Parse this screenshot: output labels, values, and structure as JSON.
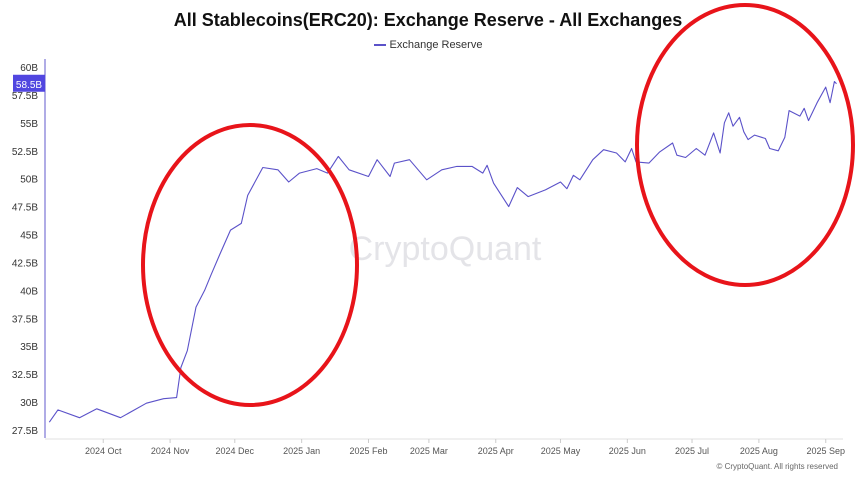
{
  "chart_data": {
    "type": "line",
    "title": "All Stablecoins(ERC20): Exchange Reserve - All Exchanges",
    "watermark": "CryptoQuant",
    "copyright": "© CryptoQuant. All rights reserved",
    "legend": {
      "placement": "top-center"
    },
    "grid": false,
    "xlim": [
      "2024-09-04",
      "2025-09-09"
    ],
    "ylim": [
      27.5,
      60
    ],
    "y_ticks": [
      "27.5B",
      "30B",
      "32.5B",
      "35B",
      "37.5B",
      "40B",
      "42.5B",
      "45B",
      "47.5B",
      "50B",
      "52.5B",
      "55B",
      "57.5B",
      "60B"
    ],
    "y_tick_values": [
      27.5,
      30,
      32.5,
      35,
      37.5,
      40,
      42.5,
      45,
      47.5,
      50,
      52.5,
      55,
      57.5,
      60
    ],
    "x_ticks": [
      {
        "label": "2024 Oct",
        "date": "2024-10-01"
      },
      {
        "label": "2024 Nov",
        "date": "2024-11-01"
      },
      {
        "label": "2024 Dec",
        "date": "2024-12-01"
      },
      {
        "label": "2025 Jan",
        "date": "2025-01-01"
      },
      {
        "label": "2025 Feb",
        "date": "2025-02-01"
      },
      {
        "label": "2025 Mar",
        "date": "2025-03-01"
      },
      {
        "label": "2025 Apr",
        "date": "2025-04-01"
      },
      {
        "label": "2025 May",
        "date": "2025-05-01"
      },
      {
        "label": "2025 Jun",
        "date": "2025-06-01"
      },
      {
        "label": "2025 Jul",
        "date": "2025-07-01"
      },
      {
        "label": "2025 Aug",
        "date": "2025-08-01"
      },
      {
        "label": "2025 Sep",
        "date": "2025-09-01"
      }
    ],
    "current_value_label": "58.5B",
    "current_value": 58.5,
    "colors": {
      "line": "#5b52c9",
      "label_bg": "#5146e0",
      "annotation": "#e8141a"
    },
    "annotations": [
      {
        "type": "ellipse",
        "color": "#e8141a",
        "from": "2024-11-01",
        "to": "2025-01-15"
      },
      {
        "type": "ellipse",
        "color": "#e8141a",
        "from": "2025-06-01",
        "to": "2025-09-09"
      }
    ],
    "series": [
      {
        "name": "Exchange Reserve",
        "unit": "B",
        "points": [
          [
            "2024-09-06",
            28.2
          ],
          [
            "2024-09-10",
            29.3
          ],
          [
            "2024-09-20",
            28.6
          ],
          [
            "2024-09-28",
            29.4
          ],
          [
            "2024-10-09",
            28.6
          ],
          [
            "2024-10-21",
            29.9
          ],
          [
            "2024-10-29",
            30.3
          ],
          [
            "2024-11-04",
            30.4
          ],
          [
            "2024-11-06",
            33.1
          ],
          [
            "2024-11-09",
            34.6
          ],
          [
            "2024-11-13",
            38.5
          ],
          [
            "2024-11-17",
            40.0
          ],
          [
            "2024-11-20",
            41.4
          ],
          [
            "2024-11-24",
            43.2
          ],
          [
            "2024-11-29",
            45.4
          ],
          [
            "2024-12-04",
            46.0
          ],
          [
            "2024-12-07",
            48.5
          ],
          [
            "2024-12-14",
            51.0
          ],
          [
            "2024-12-21",
            50.8
          ],
          [
            "2024-12-26",
            49.7
          ],
          [
            "2024-12-31",
            50.5
          ],
          [
            "2025-01-08",
            50.9
          ],
          [
            "2025-01-13",
            50.5
          ],
          [
            "2025-01-18",
            52.0
          ],
          [
            "2025-01-23",
            50.8
          ],
          [
            "2025-02-01",
            50.2
          ],
          [
            "2025-02-05",
            51.7
          ],
          [
            "2025-02-11",
            50.2
          ],
          [
            "2025-02-13",
            51.4
          ],
          [
            "2025-02-20",
            51.7
          ],
          [
            "2025-02-28",
            49.9
          ],
          [
            "2025-03-07",
            50.8
          ],
          [
            "2025-03-14",
            51.1
          ],
          [
            "2025-03-21",
            51.1
          ],
          [
            "2025-03-26",
            50.5
          ],
          [
            "2025-03-28",
            51.2
          ],
          [
            "2025-03-31",
            49.6
          ],
          [
            "2025-04-07",
            47.5
          ],
          [
            "2025-04-11",
            49.2
          ],
          [
            "2025-04-16",
            48.4
          ],
          [
            "2025-04-24",
            49.0
          ],
          [
            "2025-05-01",
            49.7
          ],
          [
            "2025-05-04",
            49.1
          ],
          [
            "2025-05-07",
            50.3
          ],
          [
            "2025-05-10",
            49.9
          ],
          [
            "2025-05-16",
            51.7
          ],
          [
            "2025-05-21",
            52.6
          ],
          [
            "2025-05-27",
            52.3
          ],
          [
            "2025-05-31",
            51.5
          ],
          [
            "2025-06-03",
            52.7
          ],
          [
            "2025-06-05",
            51.5
          ],
          [
            "2025-06-11",
            51.4
          ],
          [
            "2025-06-16",
            52.4
          ],
          [
            "2025-06-22",
            53.2
          ],
          [
            "2025-06-24",
            52.1
          ],
          [
            "2025-06-28",
            51.9
          ],
          [
            "2025-07-03",
            52.7
          ],
          [
            "2025-07-07",
            52.1
          ],
          [
            "2025-07-11",
            54.1
          ],
          [
            "2025-07-14",
            52.3
          ],
          [
            "2025-07-16",
            55.0
          ],
          [
            "2025-07-18",
            55.9
          ],
          [
            "2025-07-20",
            54.7
          ],
          [
            "2025-07-23",
            55.5
          ],
          [
            "2025-07-25",
            54.2
          ],
          [
            "2025-07-27",
            53.5
          ],
          [
            "2025-07-30",
            53.9
          ],
          [
            "2025-08-04",
            53.6
          ],
          [
            "2025-08-06",
            52.7
          ],
          [
            "2025-08-10",
            52.5
          ],
          [
            "2025-08-13",
            53.7
          ],
          [
            "2025-08-15",
            56.1
          ],
          [
            "2025-08-20",
            55.6
          ],
          [
            "2025-08-22",
            56.3
          ],
          [
            "2025-08-24",
            55.2
          ],
          [
            "2025-08-28",
            56.8
          ],
          [
            "2025-09-01",
            58.2
          ],
          [
            "2025-09-03",
            56.8
          ],
          [
            "2025-09-05",
            58.7
          ],
          [
            "2025-09-06",
            58.5
          ]
        ]
      }
    ]
  }
}
